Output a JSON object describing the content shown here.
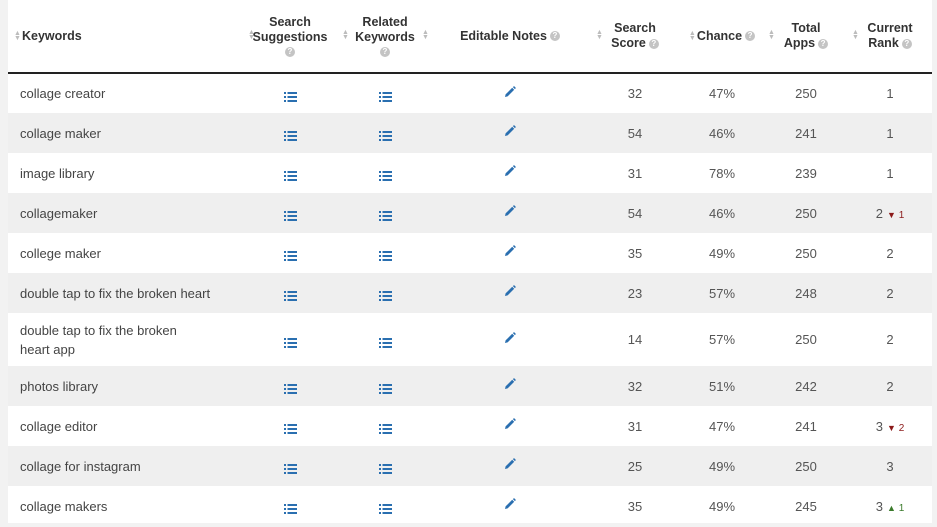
{
  "colors": {
    "icon_blue": "#2a6fb0",
    "rank_down": "#8b1a1a",
    "rank_up": "#3a7a2a",
    "row_alt": "#efefef"
  },
  "headers": {
    "keywords": "Keywords",
    "search_suggestions": [
      "Search",
      "Suggestions"
    ],
    "related_keywords": [
      "Related",
      "Keywords"
    ],
    "editable_notes": "Editable Notes",
    "search_score": [
      "Search",
      "Score"
    ],
    "chance": "Chance",
    "total_apps": [
      "Total",
      "Apps"
    ],
    "current_rank": [
      "Current",
      "Rank"
    ]
  },
  "icons": {
    "list": "list-icon",
    "edit": "pencil-icon",
    "help": "question-circle-icon",
    "sort": "sort-arrows-icon"
  },
  "rows": [
    {
      "keyword": "collage creator",
      "score": "32",
      "chance": "47%",
      "apps": "250",
      "rank": "1"
    },
    {
      "keyword": "collage maker",
      "score": "54",
      "chance": "46%",
      "apps": "241",
      "rank": "1"
    },
    {
      "keyword": "image library",
      "score": "31",
      "chance": "78%",
      "apps": "239",
      "rank": "1"
    },
    {
      "keyword": "collagemaker",
      "score": "54",
      "chance": "46%",
      "apps": "250",
      "rank": "2",
      "change_dir": "down",
      "change_val": "1"
    },
    {
      "keyword": "college maker",
      "score": "35",
      "chance": "49%",
      "apps": "250",
      "rank": "2"
    },
    {
      "keyword": "double tap to fix the broken heart",
      "score": "23",
      "chance": "57%",
      "apps": "248",
      "rank": "2"
    },
    {
      "keyword": "double tap to fix the broken heart app",
      "score": "14",
      "chance": "57%",
      "apps": "250",
      "rank": "2"
    },
    {
      "keyword": "photos library",
      "score": "32",
      "chance": "51%",
      "apps": "242",
      "rank": "2"
    },
    {
      "keyword": "collage editor",
      "score": "31",
      "chance": "47%",
      "apps": "241",
      "rank": "3",
      "change_dir": "down",
      "change_val": "2"
    },
    {
      "keyword": "collage for instagram",
      "score": "25",
      "chance": "49%",
      "apps": "250",
      "rank": "3"
    },
    {
      "keyword": "collage makers",
      "score": "35",
      "chance": "49%",
      "apps": "245",
      "rank": "3",
      "change_dir": "up",
      "change_val": "1"
    }
  ]
}
